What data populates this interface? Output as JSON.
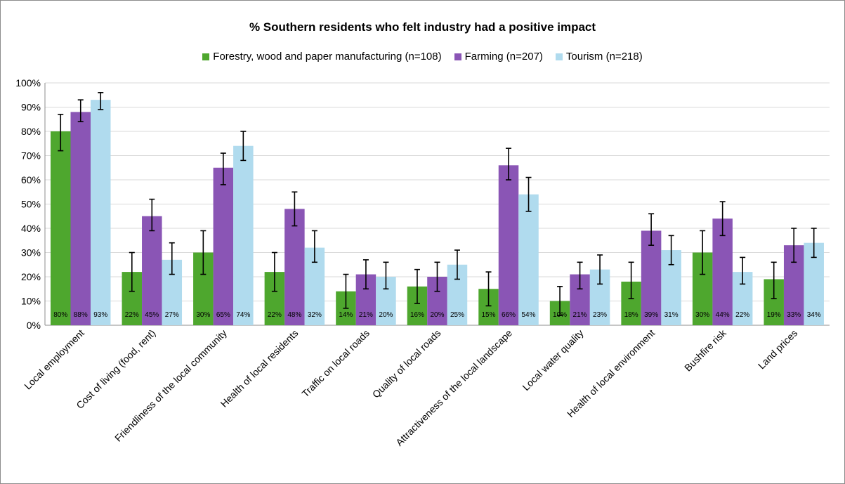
{
  "chart_data": {
    "type": "bar",
    "title": "% Southern residents who felt industry had a positive impact",
    "xlabel": "",
    "ylabel": "",
    "ylim": [
      0,
      100
    ],
    "y_ticks": [
      "0%",
      "10%",
      "20%",
      "30%",
      "40%",
      "50%",
      "60%",
      "70%",
      "80%",
      "90%",
      "100%"
    ],
    "grid": true,
    "legend_position": "top",
    "categories": [
      "Local employment",
      "Cost of living (food, rent)",
      "Friendliness of the local community",
      "Health of local residents",
      "Traffic on local roads",
      "Quality of local roads",
      "Attractiveness of the local landscape",
      "Local water quality",
      "Health of local environment",
      "Bushfire risk",
      "Land prices"
    ],
    "series": [
      {
        "name": "Forestry, wood and paper manufacturing (n=108)",
        "color": "#4ea72e",
        "values": [
          80,
          22,
          30,
          22,
          14,
          16,
          15,
          10,
          18,
          30,
          19
        ],
        "labels": [
          "80%",
          "22%",
          "30%",
          "22%",
          "14%",
          "16%",
          "15%",
          "10%",
          "18%",
          "30%",
          "19%"
        ],
        "error_low": [
          72,
          14,
          21,
          14,
          7,
          9,
          8,
          4,
          11,
          21,
          11
        ],
        "error_high": [
          87,
          30,
          39,
          30,
          21,
          23,
          22,
          16,
          26,
          39,
          26
        ]
      },
      {
        "name": "Farming (n=207)",
        "color": "#8a55b5",
        "values": [
          88,
          45,
          65,
          48,
          21,
          20,
          66,
          21,
          39,
          44,
          33
        ],
        "labels": [
          "88%",
          "45%",
          "65%",
          "48%",
          "21%",
          "20%",
          "66%",
          "21%",
          "39%",
          "44%",
          "33%"
        ],
        "error_low": [
          84,
          39,
          58,
          41,
          15,
          14,
          60,
          15,
          33,
          37,
          26
        ],
        "error_high": [
          93,
          52,
          71,
          55,
          27,
          26,
          73,
          26,
          46,
          51,
          40
        ]
      },
      {
        "name": "Tourism (n=218)",
        "color": "#b0dbee",
        "values": [
          93,
          27,
          74,
          32,
          20,
          25,
          54,
          23,
          31,
          22,
          34
        ],
        "labels": [
          "93%",
          "27%",
          "74%",
          "32%",
          "20%",
          "25%",
          "54%",
          "23%",
          "31%",
          "22%",
          "34%"
        ],
        "error_low": [
          89,
          21,
          68,
          26,
          15,
          19,
          47,
          17,
          25,
          17,
          28
        ],
        "error_high": [
          96,
          34,
          80,
          39,
          26,
          31,
          61,
          29,
          37,
          28,
          40
        ]
      }
    ]
  }
}
